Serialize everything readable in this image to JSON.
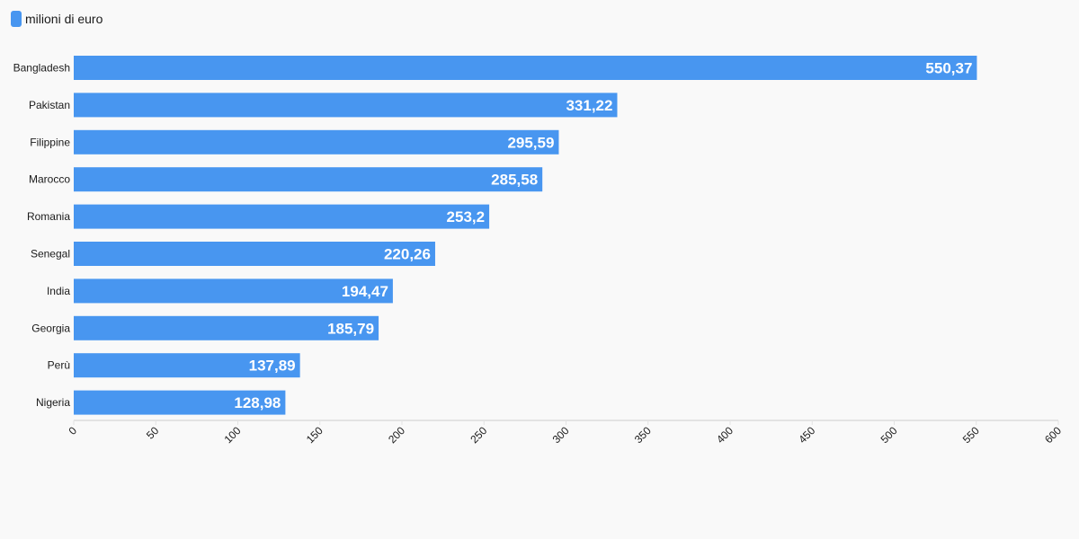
{
  "colors": {
    "bar": "#4896f0",
    "background": "#f9f9f9",
    "axis": "#e3e3e3",
    "text": "#1a1a1a",
    "value_label": "#ffffff"
  },
  "chart_data": {
    "type": "bar",
    "orientation": "horizontal",
    "categories": [
      "Bangladesh",
      "Pakistan",
      "Filippine",
      "Marocco",
      "Romania",
      "Senegal",
      "India",
      "Georgia",
      "Perù",
      "Nigeria"
    ],
    "series": [
      {
        "name": "milioni di euro",
        "values": [
          550.37,
          331.22,
          295.59,
          285.58,
          253.2,
          220.26,
          194.47,
          185.79,
          137.89,
          128.98
        ],
        "value_labels": [
          "550,37",
          "331,22",
          "295,59",
          "285,58",
          "253,2",
          "220,26",
          "194,47",
          "185,79",
          "137,89",
          "128,98"
        ]
      }
    ],
    "xlim": [
      0,
      600
    ],
    "xticks": [
      "0",
      "50",
      "100",
      "150",
      "200",
      "250",
      "300",
      "350",
      "400",
      "450",
      "500",
      "550",
      "600"
    ],
    "tick_values": [
      0,
      50,
      100,
      150,
      200,
      250,
      300,
      350,
      400,
      450,
      500,
      550,
      600
    ],
    "legend_position": "top-left",
    "grid": false
  }
}
